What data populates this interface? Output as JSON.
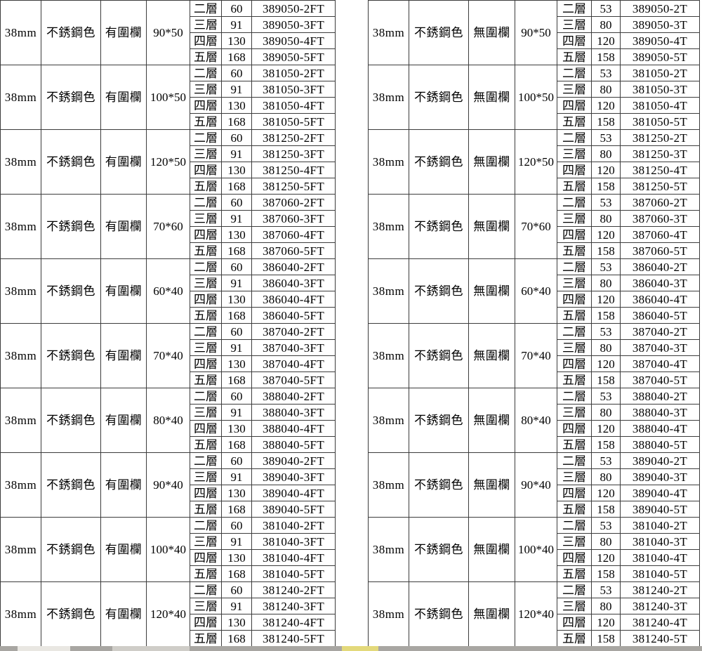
{
  "page": {
    "background": "#ffffff",
    "border_color": "#3c3c3c",
    "text_color": "#000000",
    "bottom_strip_color": "#a8a6a2",
    "bottom_strip_accent": "#e3d97b"
  },
  "tables": [
    {
      "id": "with-fence",
      "groups": [
        {
          "thickness": "38mm",
          "color": "不銹鋼色",
          "fence": "有圍欄",
          "size": "90*50",
          "items": [
            {
              "layer": "二層",
              "qty": "60",
              "code": "389050-2FT"
            },
            {
              "layer": "三層",
              "qty": "91",
              "code": "389050-3FT"
            },
            {
              "layer": "四層",
              "qty": "130",
              "code": "389050-4FT"
            },
            {
              "layer": "五層",
              "qty": "168",
              "code": "389050-5FT"
            }
          ]
        },
        {
          "thickness": "38mm",
          "color": "不銹鋼色",
          "fence": "有圍欄",
          "size": "100*50",
          "items": [
            {
              "layer": "二層",
              "qty": "60",
              "code": "381050-2FT"
            },
            {
              "layer": "三層",
              "qty": "91",
              "code": "381050-3FT"
            },
            {
              "layer": "四層",
              "qty": "130",
              "code": "381050-4FT"
            },
            {
              "layer": "五層",
              "qty": "168",
              "code": "381050-5FT"
            }
          ]
        },
        {
          "thickness": "38mm",
          "color": "不銹鋼色",
          "fence": "有圍欄",
          "size": "120*50",
          "items": [
            {
              "layer": "二層",
              "qty": "60",
              "code": "381250-2FT"
            },
            {
              "layer": "三層",
              "qty": "91",
              "code": "381250-3FT"
            },
            {
              "layer": "四層",
              "qty": "130",
              "code": "381250-4FT"
            },
            {
              "layer": "五層",
              "qty": "168",
              "code": "381250-5FT"
            }
          ]
        },
        {
          "thickness": "38mm",
          "color": "不銹鋼色",
          "fence": "有圍欄",
          "size": "70*60",
          "items": [
            {
              "layer": "二層",
              "qty": "60",
              "code": "387060-2FT"
            },
            {
              "layer": "三層",
              "qty": "91",
              "code": "387060-3FT"
            },
            {
              "layer": "四層",
              "qty": "130",
              "code": "387060-4FT"
            },
            {
              "layer": "五層",
              "qty": "168",
              "code": "387060-5FT"
            }
          ]
        },
        {
          "thickness": "38mm",
          "color": "不銹鋼色",
          "fence": "有圍欄",
          "size": "60*40",
          "items": [
            {
              "layer": "二層",
              "qty": "60",
              "code": "386040-2FT"
            },
            {
              "layer": "三層",
              "qty": "91",
              "code": "386040-3FT"
            },
            {
              "layer": "四層",
              "qty": "130",
              "code": "386040-4FT"
            },
            {
              "layer": "五層",
              "qty": "168",
              "code": "386040-5FT"
            }
          ]
        },
        {
          "thickness": "38mm",
          "color": "不銹鋼色",
          "fence": "有圍欄",
          "size": "70*40",
          "items": [
            {
              "layer": "二層",
              "qty": "60",
              "code": "387040-2FT"
            },
            {
              "layer": "三層",
              "qty": "91",
              "code": "387040-3FT"
            },
            {
              "layer": "四層",
              "qty": "130",
              "code": "387040-4FT"
            },
            {
              "layer": "五層",
              "qty": "168",
              "code": "387040-5FT"
            }
          ]
        },
        {
          "thickness": "38mm",
          "color": "不銹鋼色",
          "fence": "有圍欄",
          "size": "80*40",
          "items": [
            {
              "layer": "二層",
              "qty": "60",
              "code": "388040-2FT"
            },
            {
              "layer": "三層",
              "qty": "91",
              "code": "388040-3FT"
            },
            {
              "layer": "四層",
              "qty": "130",
              "code": "388040-4FT"
            },
            {
              "layer": "五層",
              "qty": "168",
              "code": "388040-5FT"
            }
          ]
        },
        {
          "thickness": "38mm",
          "color": "不銹鋼色",
          "fence": "有圍欄",
          "size": "90*40",
          "items": [
            {
              "layer": "二層",
              "qty": "60",
              "code": "389040-2FT"
            },
            {
              "layer": "三層",
              "qty": "91",
              "code": "389040-3FT"
            },
            {
              "layer": "四層",
              "qty": "130",
              "code": "389040-4FT"
            },
            {
              "layer": "五層",
              "qty": "168",
              "code": "389040-5FT"
            }
          ]
        },
        {
          "thickness": "38mm",
          "color": "不銹鋼色",
          "fence": "有圍欄",
          "size": "100*40",
          "items": [
            {
              "layer": "二層",
              "qty": "60",
              "code": "381040-2FT"
            },
            {
              "layer": "三層",
              "qty": "91",
              "code": "381040-3FT"
            },
            {
              "layer": "四層",
              "qty": "130",
              "code": "381040-4FT"
            },
            {
              "layer": "五層",
              "qty": "168",
              "code": "381040-5FT"
            }
          ]
        },
        {
          "thickness": "38mm",
          "color": "不銹鋼色",
          "fence": "有圍欄",
          "size": "120*40",
          "items": [
            {
              "layer": "二層",
              "qty": "60",
              "code": "381240-2FT"
            },
            {
              "layer": "三層",
              "qty": "91",
              "code": "381240-3FT"
            },
            {
              "layer": "四層",
              "qty": "130",
              "code": "381240-4FT"
            },
            {
              "layer": "五層",
              "qty": "168",
              "code": "381240-5FT"
            }
          ]
        }
      ]
    },
    {
      "id": "no-fence",
      "groups": [
        {
          "thickness": "38mm",
          "color": "不銹鋼色",
          "fence": "無圍欄",
          "size": "90*50",
          "items": [
            {
              "layer": "二層",
              "qty": "53",
              "code": "389050-2T"
            },
            {
              "layer": "三層",
              "qty": "80",
              "code": "389050-3T"
            },
            {
              "layer": "四層",
              "qty": "120",
              "code": "389050-4T"
            },
            {
              "layer": "五層",
              "qty": "158",
              "code": "389050-5T"
            }
          ]
        },
        {
          "thickness": "38mm",
          "color": "不銹鋼色",
          "fence": "無圍欄",
          "size": "100*50",
          "items": [
            {
              "layer": "二層",
              "qty": "53",
              "code": "381050-2T"
            },
            {
              "layer": "三層",
              "qty": "80",
              "code": "381050-3T"
            },
            {
              "layer": "四層",
              "qty": "120",
              "code": "381050-4T"
            },
            {
              "layer": "五層",
              "qty": "158",
              "code": "381050-5T"
            }
          ]
        },
        {
          "thickness": "38mm",
          "color": "不銹鋼色",
          "fence": "無圍欄",
          "size": "120*50",
          "items": [
            {
              "layer": "二層",
              "qty": "53",
              "code": "381250-2T"
            },
            {
              "layer": "三層",
              "qty": "80",
              "code": "381250-3T"
            },
            {
              "layer": "四層",
              "qty": "120",
              "code": "381250-4T"
            },
            {
              "layer": "五層",
              "qty": "158",
              "code": "381250-5T"
            }
          ]
        },
        {
          "thickness": "38mm",
          "color": "不銹鋼色",
          "fence": "無圍欄",
          "size": "70*60",
          "items": [
            {
              "layer": "二層",
              "qty": "53",
              "code": "387060-2T"
            },
            {
              "layer": "三層",
              "qty": "80",
              "code": "387060-3T"
            },
            {
              "layer": "四層",
              "qty": "120",
              "code": "387060-4T"
            },
            {
              "layer": "五層",
              "qty": "158",
              "code": "387060-5T"
            }
          ]
        },
        {
          "thickness": "38mm",
          "color": "不銹鋼色",
          "fence": "無圍欄",
          "size": "60*40",
          "items": [
            {
              "layer": "二層",
              "qty": "53",
              "code": "386040-2T"
            },
            {
              "layer": "三層",
              "qty": "80",
              "code": "386040-3T"
            },
            {
              "layer": "四層",
              "qty": "120",
              "code": "386040-4T"
            },
            {
              "layer": "五層",
              "qty": "158",
              "code": "386040-5T"
            }
          ]
        },
        {
          "thickness": "38mm",
          "color": "不銹鋼色",
          "fence": "無圍欄",
          "size": "70*40",
          "items": [
            {
              "layer": "二層",
              "qty": "53",
              "code": "387040-2T"
            },
            {
              "layer": "三層",
              "qty": "80",
              "code": "387040-3T"
            },
            {
              "layer": "四層",
              "qty": "120",
              "code": "387040-4T"
            },
            {
              "layer": "五層",
              "qty": "158",
              "code": "387040-5T"
            }
          ]
        },
        {
          "thickness": "38mm",
          "color": "不銹鋼色",
          "fence": "無圍欄",
          "size": "80*40",
          "items": [
            {
              "layer": "二層",
              "qty": "53",
              "code": "388040-2T"
            },
            {
              "layer": "三層",
              "qty": "80",
              "code": "388040-3T"
            },
            {
              "layer": "四層",
              "qty": "120",
              "code": "388040-4T"
            },
            {
              "layer": "五層",
              "qty": "158",
              "code": "388040-5T"
            }
          ]
        },
        {
          "thickness": "38mm",
          "color": "不銹鋼色",
          "fence": "無圍欄",
          "size": "90*40",
          "items": [
            {
              "layer": "二層",
              "qty": "53",
              "code": "389040-2T"
            },
            {
              "layer": "三層",
              "qty": "80",
              "code": "389040-3T"
            },
            {
              "layer": "四層",
              "qty": "120",
              "code": "389040-4T"
            },
            {
              "layer": "五層",
              "qty": "158",
              "code": "389040-5T"
            }
          ]
        },
        {
          "thickness": "38mm",
          "color": "不銹鋼色",
          "fence": "無圍欄",
          "size": "100*40",
          "items": [
            {
              "layer": "二層",
              "qty": "53",
              "code": "381040-2T"
            },
            {
              "layer": "三層",
              "qty": "80",
              "code": "381040-3T"
            },
            {
              "layer": "四層",
              "qty": "120",
              "code": "381040-4T"
            },
            {
              "layer": "五層",
              "qty": "158",
              "code": "381040-5T"
            }
          ]
        },
        {
          "thickness": "38mm",
          "color": "不銹鋼色",
          "fence": "無圍欄",
          "size": "120*40",
          "items": [
            {
              "layer": "二層",
              "qty": "53",
              "code": "381240-2T"
            },
            {
              "layer": "三層",
              "qty": "80",
              "code": "381240-3T"
            },
            {
              "layer": "四層",
              "qty": "120",
              "code": "381240-4T"
            },
            {
              "layer": "五層",
              "qty": "158",
              "code": "381240-5T"
            }
          ]
        }
      ]
    }
  ]
}
